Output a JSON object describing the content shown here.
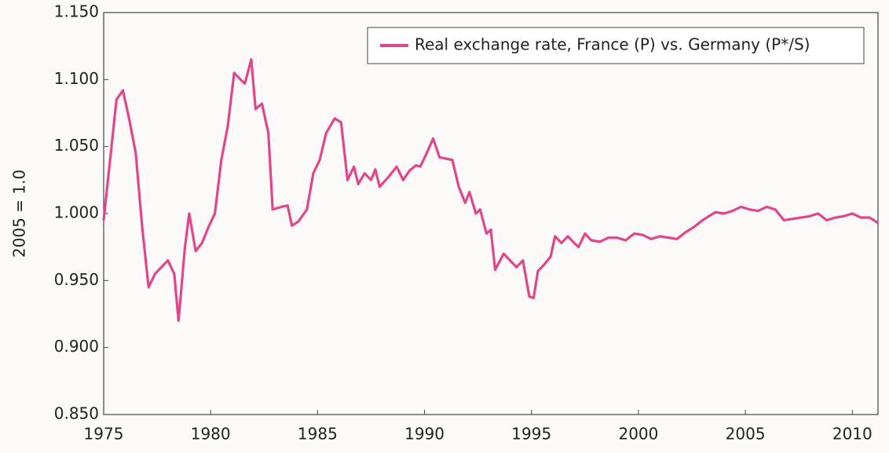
{
  "chart_data": {
    "type": "line",
    "ylabel": "2005 = 1.0",
    "xlim": [
      1975,
      2011.2
    ],
    "ylim": [
      0.85,
      1.15
    ],
    "xticks": [
      1975,
      1980,
      1985,
      1990,
      1995,
      2000,
      2005,
      2010
    ],
    "yticks": [
      {
        "value": 0.85,
        "label": "0.850"
      },
      {
        "value": 0.9,
        "label": "0.900"
      },
      {
        "value": 0.95,
        "label": "0.950"
      },
      {
        "value": 1.0,
        "label": "1.000"
      },
      {
        "value": 1.05,
        "label": "1.050"
      },
      {
        "value": 1.1,
        "label": "1.100"
      },
      {
        "value": 1.15,
        "label": "1.150"
      }
    ],
    "legend": "upper right",
    "grid": false,
    "series": [
      {
        "name": "Real exchange rate, France (P) vs. Germany (P*/S)",
        "color": "#e0478a",
        "x": [
          1975.0,
          1975.3,
          1975.6,
          1975.9,
          1976.2,
          1976.5,
          1976.8,
          1977.1,
          1977.4,
          1977.7,
          1978.0,
          1978.3,
          1978.5,
          1978.8,
          1979.0,
          1979.3,
          1979.6,
          1979.9,
          1980.2,
          1980.5,
          1980.8,
          1981.1,
          1981.4,
          1981.6,
          1981.9,
          1982.1,
          1982.4,
          1982.7,
          1982.9,
          1983.3,
          1983.6,
          1983.8,
          1984.1,
          1984.5,
          1984.8,
          1985.1,
          1985.4,
          1985.8,
          1986.1,
          1986.4,
          1986.7,
          1986.9,
          1987.2,
          1987.5,
          1987.7,
          1987.9,
          1988.3,
          1988.7,
          1989.0,
          1989.3,
          1989.6,
          1989.8,
          1990.1,
          1990.4,
          1990.7,
          1991.0,
          1991.3,
          1991.6,
          1991.9,
          1992.1,
          1992.4,
          1992.6,
          1992.9,
          1993.1,
          1993.3,
          1993.7,
          1994.0,
          1994.3,
          1994.6,
          1994.9,
          1995.1,
          1995.3,
          1995.6,
          1995.9,
          1996.1,
          1996.4,
          1996.7,
          1997.0,
          1997.2,
          1997.5,
          1997.8,
          1998.2,
          1998.6,
          1999.0,
          1999.4,
          1999.8,
          2000.2,
          2000.6,
          2001.0,
          2001.4,
          2001.8,
          2002.2,
          2002.6,
          2003.0,
          2003.3,
          2003.6,
          2004.0,
          2004.4,
          2004.8,
          2005.2,
          2005.6,
          2006.0,
          2006.4,
          2006.8,
          2007.2,
          2007.6,
          2008.0,
          2008.4,
          2008.8,
          2009.2,
          2009.6,
          2010.0,
          2010.4,
          2010.8,
          2011.2
        ],
        "values": [
          0.995,
          1.04,
          1.085,
          1.092,
          1.07,
          1.045,
          0.99,
          0.945,
          0.955,
          0.96,
          0.965,
          0.955,
          0.92,
          0.975,
          1.0,
          0.972,
          0.978,
          0.99,
          1.0,
          1.04,
          1.065,
          1.105,
          1.1,
          1.097,
          1.115,
          1.078,
          1.082,
          1.06,
          1.003,
          1.005,
          1.006,
          0.991,
          0.994,
          1.003,
          1.03,
          1.04,
          1.06,
          1.071,
          1.068,
          1.025,
          1.035,
          1.022,
          1.03,
          1.025,
          1.033,
          1.02,
          1.027,
          1.035,
          1.025,
          1.032,
          1.036,
          1.035,
          1.045,
          1.056,
          1.042,
          1.041,
          1.04,
          1.02,
          1.008,
          1.016,
          1.0,
          1.003,
          0.985,
          0.988,
          0.958,
          0.97,
          0.965,
          0.96,
          0.965,
          0.938,
          0.937,
          0.957,
          0.962,
          0.968,
          0.983,
          0.978,
          0.983,
          0.978,
          0.975,
          0.985,
          0.98,
          0.979,
          0.982,
          0.982,
          0.98,
          0.985,
          0.984,
          0.981,
          0.983,
          0.982,
          0.981,
          0.986,
          0.99,
          0.995,
          0.998,
          1.001,
          1.0,
          1.002,
          1.005,
          1.003,
          1.002,
          1.005,
          1.003,
          0.995,
          0.996,
          0.997,
          0.998,
          1.0,
          0.995,
          0.997,
          0.998,
          1.0,
          0.997,
          0.997,
          0.993
        ]
      }
    ]
  }
}
